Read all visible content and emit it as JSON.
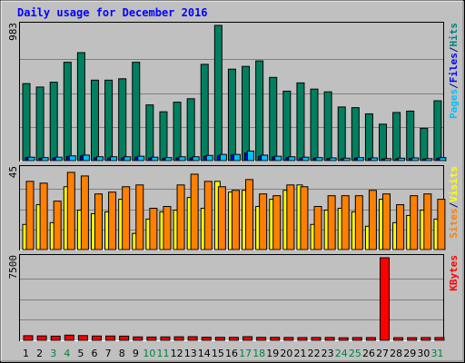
{
  "chart_data": {
    "type": "bar",
    "title": "Daily usage for December 2016",
    "categories": [
      "1",
      "2",
      "3",
      "4",
      "5",
      "6",
      "7",
      "8",
      "9",
      "10",
      "11",
      "12",
      "13",
      "14",
      "15",
      "16",
      "17",
      "18",
      "19",
      "20",
      "21",
      "22",
      "23",
      "24",
      "25",
      "26",
      "27",
      "28",
      "29",
      "30",
      "31"
    ],
    "weekend_days": [
      "3",
      "4",
      "10",
      "11",
      "17",
      "18",
      "24",
      "25",
      "31"
    ],
    "grid": true,
    "panels": [
      {
        "id": "hits",
        "ymax_label": "983",
        "ylim": [
          0,
          983
        ],
        "legend": [
          {
            "text": "Pages",
            "color": "#00c0ff"
          },
          {
            "text": "/",
            "color": "#000080"
          },
          {
            "text": "Files",
            "color": "#0000ff"
          },
          {
            "text": "/",
            "color": "#000080"
          },
          {
            "text": "Hits",
            "color": "#008080"
          }
        ],
        "series": [
          {
            "name": "Hits",
            "color": "#008060",
            "values": [
              560,
              535,
              570,
              715,
              785,
              585,
              585,
              595,
              715,
              405,
              355,
              425,
              450,
              700,
              983,
              665,
              685,
              725,
              605,
              505,
              565,
              520,
              500,
              390,
              385,
              340,
              265,
              350,
              360,
              235,
              435
            ]
          },
          {
            "name": "Files",
            "color": "#0000ff",
            "values": [
              22,
              18,
              20,
              30,
              35,
              20,
              20,
              20,
              25,
              20,
              15,
              20,
              20,
              32,
              35,
              40,
              55,
              32,
              28,
              22,
              20,
              18,
              16,
              14,
              18,
              15,
              12,
              14,
              16,
              12,
              18
            ]
          },
          {
            "name": "Pages",
            "color": "#00c0ff",
            "values": [
              25,
              22,
              25,
              35,
              40,
              28,
              28,
              28,
              32,
              25,
              22,
              28,
              28,
              38,
              45,
              45,
              70,
              40,
              32,
              28,
              25,
              22,
              20,
              18,
              22,
              20,
              15,
              18,
              20,
              15,
              22
            ]
          }
        ]
      },
      {
        "id": "visits",
        "ymax_label": "45",
        "ylim": [
          0,
          45
        ],
        "legend": [
          {
            "text": "Sites",
            "color": "#ff8000"
          },
          {
            "text": "/",
            "color": "#000080"
          },
          {
            "text": "Visits",
            "color": "#ffff00"
          }
        ],
        "series": [
          {
            "name": "Sites",
            "color": "#ff8000",
            "values": [
              38,
              37,
              27,
              43,
              41,
              31,
              32,
              35,
              36,
              23,
              24,
              36,
              42,
              38,
              35,
              33,
              39,
              31,
              30,
              36,
              35,
              24,
              30,
              30,
              30,
              33,
              31,
              25,
              30,
              31,
              28
            ]
          },
          {
            "name": "Visits",
            "color": "#ffff00",
            "values": [
              14,
              25,
              15,
              35,
              22,
              20,
              21,
              28,
              9,
              17,
              21,
              22,
              29,
              23,
              38,
              32,
              33,
              24,
              28,
              33,
              36,
              14,
              22,
              23,
              21,
              13,
              28,
              15,
              19,
              22,
              17
            ]
          }
        ]
      },
      {
        "id": "kbytes",
        "ymax_label": "7500",
        "ylim": [
          0,
          7500
        ],
        "legend": [
          {
            "text": "KBytes",
            "color": "#ff0000"
          }
        ],
        "series": [
          {
            "name": "KBytes",
            "color": "#ff0000",
            "values": [
              420,
              400,
              380,
              470,
              430,
              390,
              390,
              380,
              310,
              300,
              310,
              320,
              330,
              280,
              270,
              270,
              330,
              270,
              270,
              260,
              250,
              260,
              260,
              230,
              250,
              250,
              7500,
              240,
              240,
              250,
              250
            ]
          }
        ]
      }
    ]
  }
}
